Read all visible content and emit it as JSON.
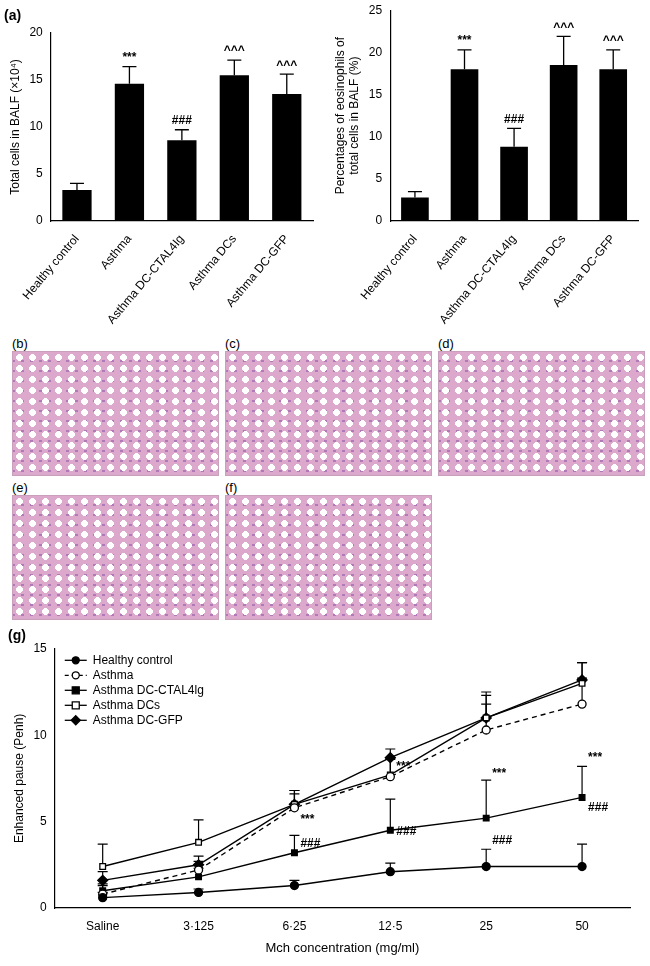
{
  "chart_data": [
    {
      "type": "bar",
      "title": "(a)",
      "y_label": "Total cells in BALF (×10⁴)",
      "categories": [
        "Healthy control",
        "Asthma",
        "Asthma DC-CTAL4Ig",
        "Asthma DCs",
        "Asthma DC-GFP"
      ],
      "values": [
        3.3,
        14.6,
        8.6,
        15.5,
        13.5
      ],
      "errors": [
        0.7,
        1.8,
        1.1,
        1.6,
        2.1
      ],
      "color": "#000000",
      "ylim": [
        0,
        20
      ],
      "yticks": [
        0,
        5,
        10,
        15,
        20
      ],
      "grid": false,
      "annotations": [
        {
          "category": "Asthma",
          "text": "***"
        },
        {
          "category": "Asthma DC-CTAL4Ig",
          "text": "###"
        },
        {
          "category": "Asthma DCs",
          "text": "^^^"
        },
        {
          "category": "Asthma DC-GFP",
          "text": "^^^"
        }
      ]
    },
    {
      "type": "bar",
      "y_label": "Percentages of eosinophils of total cells in BALF (%)",
      "categories": [
        "Healthy control",
        "Asthma",
        "Asthma DC-CTAL4Ig",
        "Asthma DCs",
        "Asthma DC-GFP"
      ],
      "values": [
        2.8,
        18.0,
        8.8,
        18.5,
        18.0
      ],
      "errors": [
        0.7,
        2.3,
        2.2,
        3.4,
        2.3
      ],
      "color": "#000000",
      "ylim": [
        0,
        25
      ],
      "yticks": [
        0,
        5,
        10,
        15,
        20,
        25
      ],
      "grid": false,
      "annotations": [
        {
          "category": "Asthma",
          "text": "***"
        },
        {
          "category": "Asthma DC-CTAL4Ig",
          "text": "###"
        },
        {
          "category": "Asthma DCs",
          "text": "^^^"
        },
        {
          "category": "Asthma DC-GFP",
          "text": "^^^"
        }
      ]
    },
    {
      "type": "line",
      "title": "(g)",
      "x_label": "Mch concentration (mg/ml)",
      "y_label": "Enhanced pause (Penh)",
      "categories": [
        "Saline",
        "3·125",
        "6·25",
        "12·5",
        "25",
        "50"
      ],
      "series": [
        {
          "name": "Healthy control",
          "color": "#000000",
          "marker": "circle",
          "line_style": "solid",
          "values": [
            0.6,
            0.9,
            1.3,
            2.1,
            2.4,
            2.4
          ],
          "errors": [
            0.3,
            0.2,
            0.3,
            0.5,
            1.0,
            1.3
          ]
        },
        {
          "name": "Asthma",
          "color": "#000000",
          "marker": "open_circle",
          "line_style": "dashed",
          "values": [
            0.8,
            2.2,
            5.8,
            7.6,
            10.3,
            11.8
          ],
          "errors": [
            0.5,
            0.5,
            0.8,
            1.0,
            1.5,
            1.5
          ]
        },
        {
          "name": "Asthma DC-CTAL4lg",
          "color": "#000000",
          "marker": "square",
          "line_style": "solid",
          "values": [
            1.0,
            1.8,
            3.2,
            4.5,
            5.2,
            6.4
          ],
          "errors": [
            0.4,
            0.5,
            1.0,
            1.8,
            2.2,
            1.8
          ]
        },
        {
          "name": "Asthma DCs",
          "color": "#000000",
          "marker": "open_square",
          "line_style": "solid",
          "values": [
            2.4,
            3.8,
            6.0,
            7.7,
            11.0,
            13.0
          ],
          "errors": [
            1.3,
            1.3,
            0.8,
            1.0,
            1.5,
            1.2
          ]
        },
        {
          "name": "Asthma DC-GFP",
          "color": "#000000",
          "marker": "diamond",
          "line_style": "solid",
          "values": [
            1.6,
            2.5,
            6.0,
            8.7,
            11.0,
            13.2
          ],
          "errors": [
            0.5,
            0.5,
            0.8,
            0.5,
            1.3,
            1.0
          ]
        }
      ],
      "ylim": [
        0,
        15
      ],
      "yticks": [
        0,
        5,
        10,
        15
      ],
      "grid": false,
      "legend": "upper left",
      "annotations": [
        {
          "category": "6·25",
          "y": 5.1,
          "text": "***"
        },
        {
          "category": "12·5",
          "y": 8.2,
          "text": "***"
        },
        {
          "category": "25",
          "y": 7.8,
          "text": "***"
        },
        {
          "category": "50",
          "y": 8.7,
          "text": "***"
        },
        {
          "category": "6·25",
          "y": 3.7,
          "text": "###"
        },
        {
          "category": "12·5",
          "y": 4.4,
          "text": "###"
        },
        {
          "category": "25",
          "y": 3.9,
          "text": "###"
        },
        {
          "category": "50",
          "y": 5.8,
          "text": "###"
        }
      ]
    }
  ],
  "figure_panels": [
    "(b)",
    "(c)",
    "(d)",
    "(e)",
    "(f)"
  ]
}
